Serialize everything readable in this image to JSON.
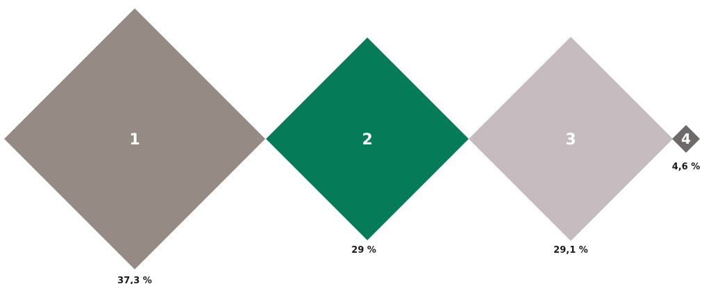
{
  "chart_data": {
    "type": "diamond-proportion",
    "title": "",
    "categories": [
      "1",
      "2",
      "3",
      "4"
    ],
    "value_labels": [
      "37,3 %",
      "29 %",
      "29,1 %",
      "4,6 %"
    ],
    "values": [
      37.3,
      29,
      29.1,
      4.6
    ],
    "colors": [
      "#958b84",
      "#057b57",
      "#c6bcc0",
      "#6e6a6a"
    ]
  }
}
